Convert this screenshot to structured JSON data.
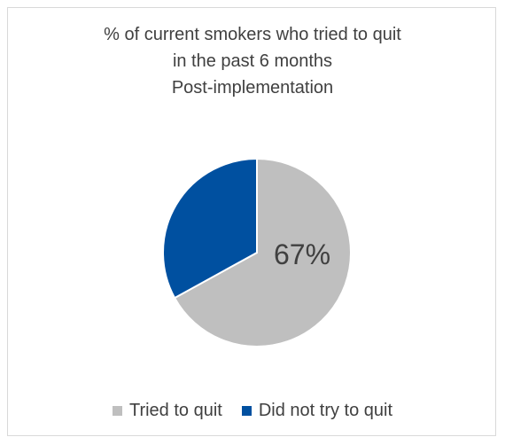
{
  "chart_data": {
    "type": "pie",
    "title_lines": [
      "% of current smokers who tried to quit",
      "in the past 6 months",
      "Post-implementation"
    ],
    "series": [
      {
        "name": "Tried to quit",
        "value": 67,
        "color": "#bfbfbf"
      },
      {
        "name": "Did not try to quit",
        "value": 33,
        "color": "#0050a0"
      }
    ],
    "data_labels": [
      {
        "series_index": 0,
        "text": "67%"
      }
    ],
    "legend_position": "bottom"
  }
}
